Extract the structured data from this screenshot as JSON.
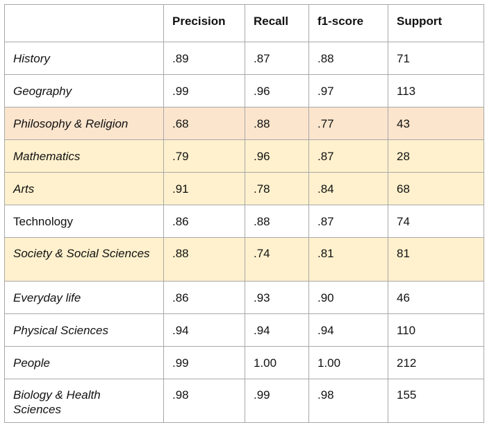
{
  "table": {
    "headers": [
      "",
      "Precision",
      "Recall",
      "f1-score",
      "Support"
    ],
    "highlight_colors": {
      "orange": "#fbe5cd",
      "yellow": "#fff1cd"
    },
    "rows": [
      {
        "label": "History",
        "precision": ".89",
        "recall": ".87",
        "f1": ".88",
        "support": "71",
        "italic": true,
        "highlight": "none"
      },
      {
        "label": "Geography",
        "precision": ".99",
        "recall": ".96",
        "f1": ".97",
        "support": "113",
        "italic": true,
        "highlight": "none"
      },
      {
        "label": "Philosophy & Religion",
        "precision": ".68",
        "recall": ".88",
        "f1": ".77",
        "support": "43",
        "italic": true,
        "highlight": "orange"
      },
      {
        "label": "Mathematics",
        "precision": ".79",
        "recall": ".96",
        "f1": ".87",
        "support": "28",
        "italic": true,
        "highlight": "yellow"
      },
      {
        "label": "Arts",
        "precision": ".91",
        "recall": ".78",
        "f1": ".84",
        "support": "68",
        "italic": true,
        "highlight": "yellow"
      },
      {
        "label": "Technology",
        "precision": ".86",
        "recall": ".88",
        "f1": ".87",
        "support": "74",
        "italic": false,
        "highlight": "none"
      },
      {
        "label": "Society & Social Sciences",
        "precision": ".88",
        "recall": ".74",
        "f1": ".81",
        "support": "81",
        "italic": true,
        "highlight": "yellow"
      },
      {
        "label": "Everyday life",
        "precision": ".86",
        "recall": ".93",
        "f1": ".90",
        "support": "46",
        "italic": true,
        "highlight": "none"
      },
      {
        "label": "Physical Sciences",
        "precision": ".94",
        "recall": ".94",
        "f1": ".94",
        "support": "110",
        "italic": true,
        "highlight": "none"
      },
      {
        "label": "People",
        "precision": ".99",
        "recall": "1.00",
        "f1": "1.00",
        "support": "212",
        "italic": true,
        "highlight": "none"
      },
      {
        "label": "Biology & Health Sciences",
        "precision": ".98",
        "recall": ".99",
        "f1": ".98",
        "support": "155",
        "italic": true,
        "highlight": "none"
      }
    ]
  }
}
